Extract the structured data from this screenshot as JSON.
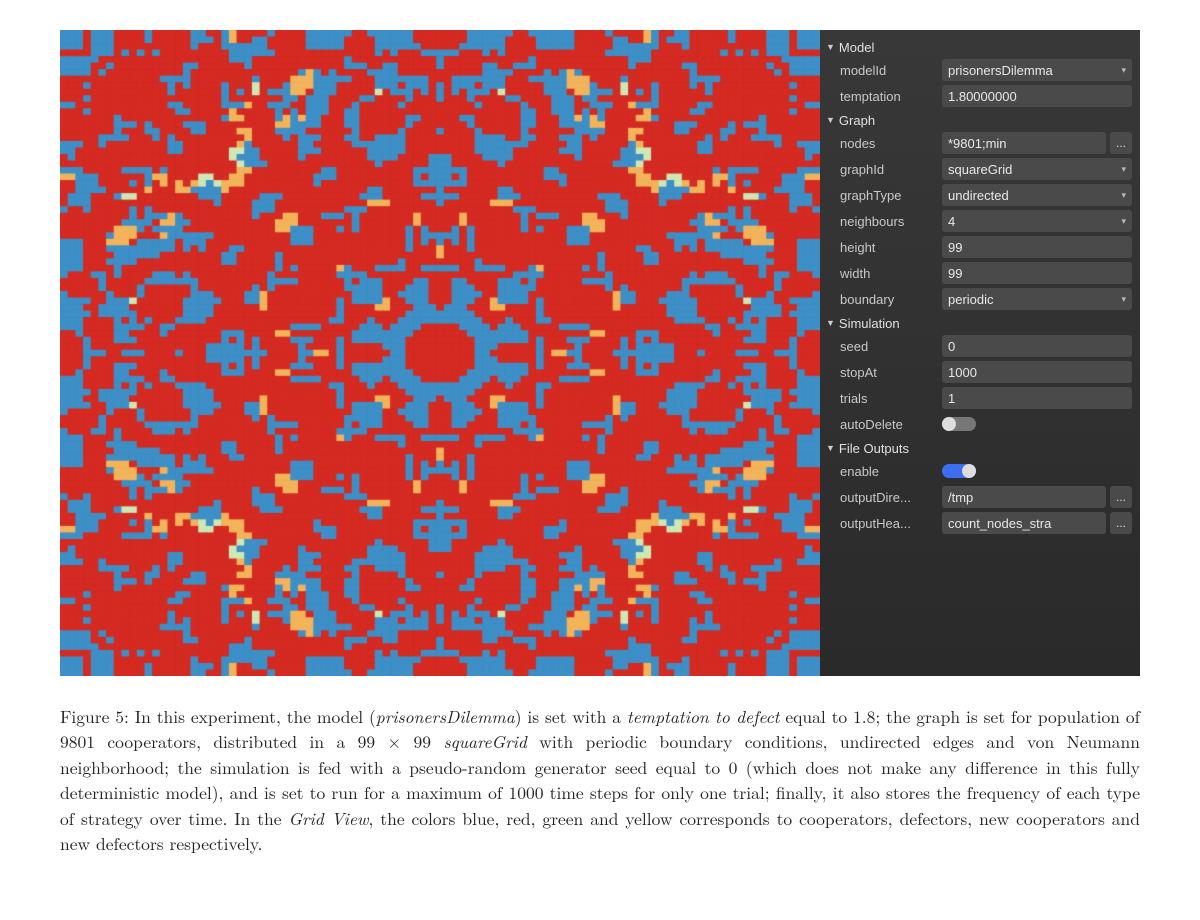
{
  "viz": {
    "gridSize": 99,
    "seed": 0,
    "colors": {
      "cooperator": "#3d8fc6",
      "defector": "#d42a22",
      "newCooperator": "#cde8b5",
      "newDefector": "#f3b35a",
      "background": "#000000"
    }
  },
  "panel": {
    "sections": [
      {
        "title": "Model",
        "rows": [
          {
            "label": "modelId",
            "type": "select",
            "value": "prisonersDilemma"
          },
          {
            "label": "temptation",
            "type": "text",
            "value": "1.80000000"
          }
        ]
      },
      {
        "title": "Graph",
        "rows": [
          {
            "label": "nodes",
            "type": "text-ell",
            "value": "*9801;min"
          },
          {
            "label": "graphId",
            "type": "select",
            "value": "squareGrid"
          },
          {
            "label": "graphType",
            "type": "select",
            "value": "undirected"
          },
          {
            "label": "neighbours",
            "type": "select",
            "value": "4"
          },
          {
            "label": "height",
            "type": "text",
            "value": "99"
          },
          {
            "label": "width",
            "type": "text",
            "value": "99"
          },
          {
            "label": "boundary",
            "type": "select",
            "value": "periodic"
          }
        ]
      },
      {
        "title": "Simulation",
        "rows": [
          {
            "label": "seed",
            "type": "text",
            "value": "0"
          },
          {
            "label": "stopAt",
            "type": "text",
            "value": "1000"
          },
          {
            "label": "trials",
            "type": "text",
            "value": "1"
          },
          {
            "label": "autoDelete",
            "type": "toggle",
            "value": false
          }
        ]
      },
      {
        "title": "File Outputs",
        "rows": [
          {
            "label": "enable",
            "type": "toggle",
            "value": true
          },
          {
            "label": "outputDire...",
            "type": "text-ell",
            "value": "/tmp"
          },
          {
            "label": "outputHea...",
            "type": "text-ell",
            "value": "count_nodes_stra"
          }
        ]
      }
    ]
  },
  "caption": {
    "figureLabel": "Figure 5:",
    "text_parts": [
      "   In this experiment, the model (",
      {
        "it": "prisonersDilemma"
      },
      ") is set with a ",
      {
        "it": "temptation to defect"
      },
      " equal to 1.8; the graph is set for population of 9801 cooperators, distributed in a 99 × 99 ",
      {
        "it": "squareGrid"
      },
      " with periodic boundary conditions, undirected edges and von Neumann neighborhood; the simulation is fed with a pseudo-random generator seed equal to 0 (which does not make any difference in this fully deterministic model), and is set to run for a maximum of 1000 time steps for only one trial; finally, it also stores the frequency of each type of strategy over time. In the ",
      {
        "it": "Grid View"
      },
      ", the colors blue, red, green and yellow corresponds to cooperators, defectors, new cooperators and new defectors respectively."
    ]
  }
}
